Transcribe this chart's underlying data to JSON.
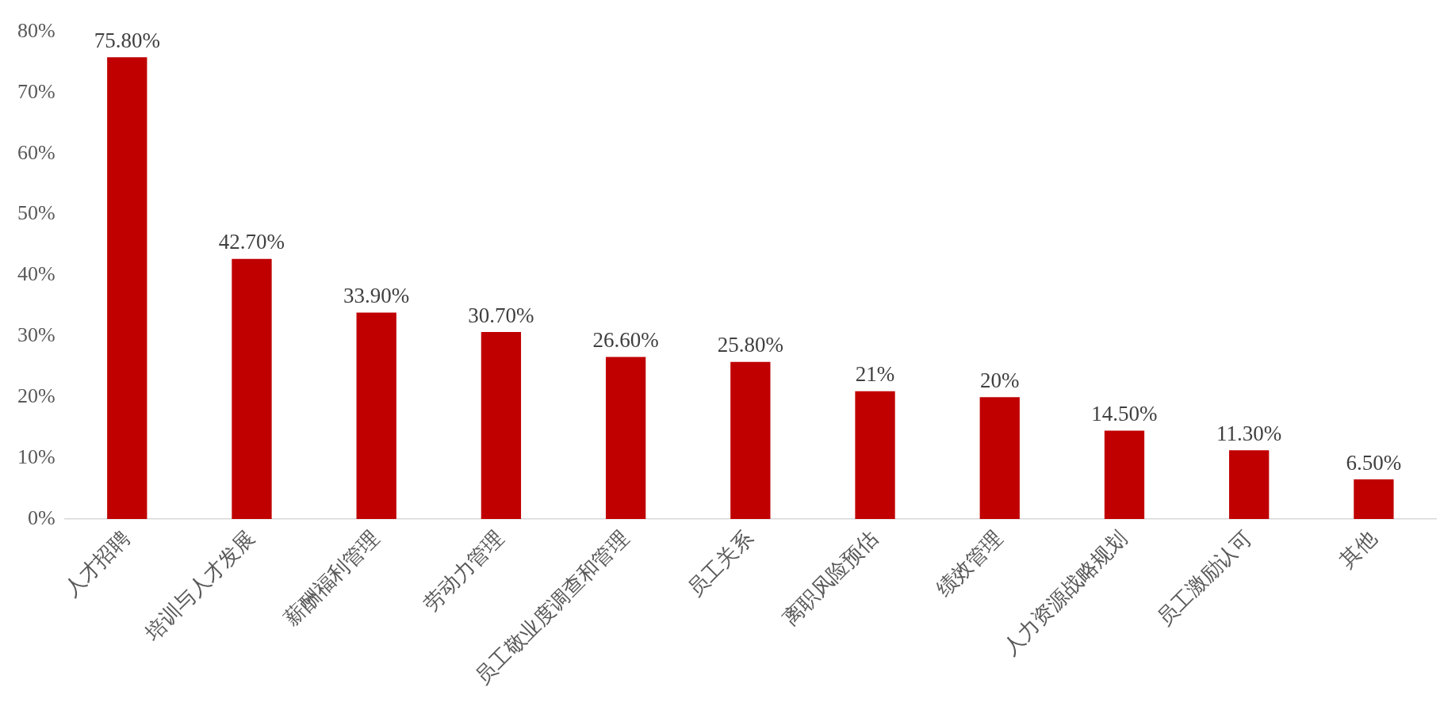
{
  "chart_data": {
    "type": "bar",
    "categories": [
      "人才招聘",
      "培训与人才发展",
      "薪酬福利管理",
      "劳动力管理",
      "员工敬业度调查和管理",
      "员工关系",
      "离职风险预估",
      "绩效管理",
      "人力资源战略规划",
      "员工激励认可",
      "其他"
    ],
    "values": [
      75.8,
      42.7,
      33.9,
      30.7,
      26.6,
      25.8,
      21,
      20,
      14.5,
      11.3,
      6.5
    ],
    "value_labels": [
      "75.80%",
      "42.70%",
      "33.90%",
      "30.70%",
      "26.60%",
      "25.80%",
      "21%",
      "20%",
      "14.50%",
      "11.30%",
      "6.50%"
    ],
    "color": "#c00000",
    "ylim": [
      0,
      80
    ],
    "yticks": [
      {
        "value": 0,
        "label": "0%"
      },
      {
        "value": 10,
        "label": "10%"
      },
      {
        "value": 20,
        "label": "20%"
      },
      {
        "value": 30,
        "label": "30%"
      },
      {
        "value": 40,
        "label": "40%"
      },
      {
        "value": 50,
        "label": "50%"
      },
      {
        "value": 60,
        "label": "60%"
      },
      {
        "value": 70,
        "label": "70%"
      },
      {
        "value": 80,
        "label": "80%"
      }
    ],
    "grid": false,
    "legend": false
  }
}
